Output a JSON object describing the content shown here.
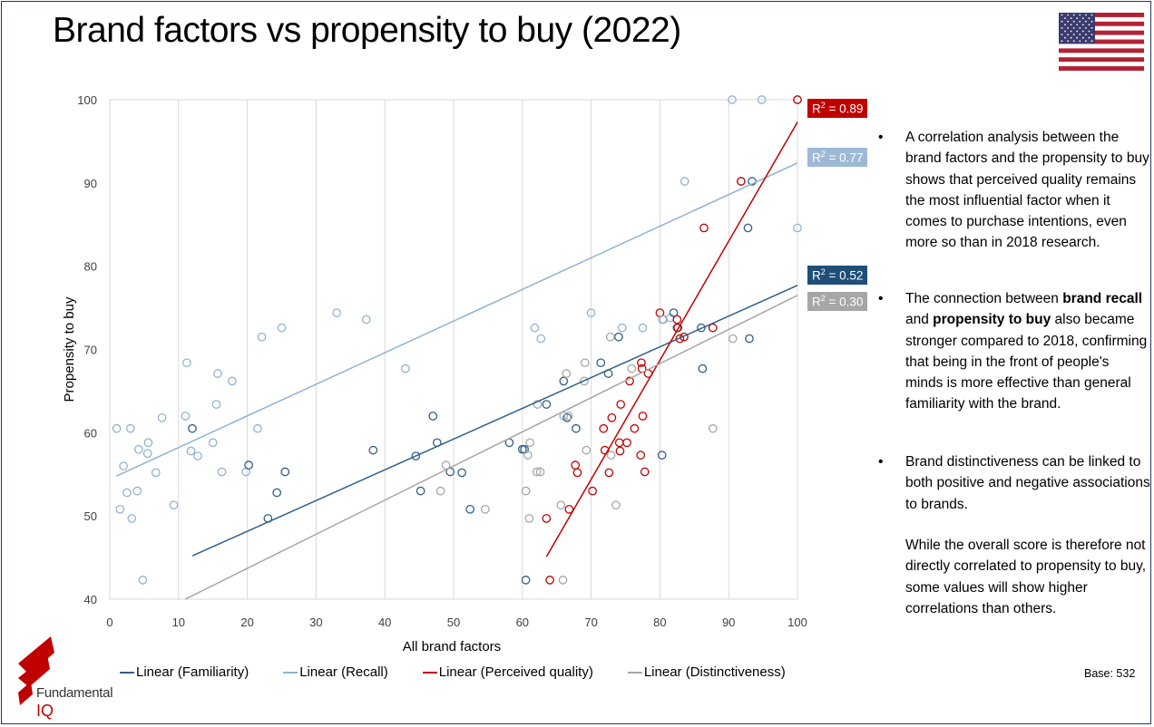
{
  "title": "Brand factors vs propensity to buy (2022)",
  "flag_icon": "us-flag-icon",
  "bullets": {
    "b1": "A correlation analysis between the brand factors and the propensity to buy shows that perceived quality remains the most influential factor when it comes to purchase intentions, even more so than in 2018 research.",
    "b2_pre": "The connection between ",
    "b2_bold1": "brand recall",
    "b2_mid": " and ",
    "b2_bold2": "propensity to buy",
    "b2_post": " also became stronger compared to 2018, confirming that being in the front of people's minds is more effective than general familiarity with the brand.",
    "b3": "Brand distinctiveness can be linked to both positive and negative associations to brands.",
    "b4": "While the overall score is therefore not directly correlated to propensity to buy, some values will show higher correlations than others."
  },
  "legend": [
    {
      "label": "Linear (Familiarity)",
      "color": "#2e5f8a"
    },
    {
      "label": "Linear (Recall)",
      "color": "#8fb3d4"
    },
    {
      "label": "Linear (Perceived quality)",
      "color": "#c00000"
    },
    {
      "label": "Linear (Distinctiveness)",
      "color": "#a6a6a6"
    }
  ],
  "base_label": "Base: 532",
  "logo": {
    "line1": "Fundamental",
    "line2": "IQ"
  },
  "r2_labels": [
    {
      "text": "0.89",
      "series": "Perceived quality",
      "bg": "#c00000"
    },
    {
      "text": "0.77",
      "series": "Recall",
      "bg": "#9db9d6"
    },
    {
      "text": "0.52",
      "series": "Familiarity",
      "bg": "#1f4e79"
    },
    {
      "text": "0.30",
      "series": "Distinctiveness",
      "bg": "#a6a6a6"
    }
  ],
  "r2_prefix": "R",
  "r2_sup": "2",
  "r2_eq": " = ",
  "chart_data": {
    "type": "scatter",
    "title": "",
    "xlabel": "All brand factors",
    "ylabel": "Propensity to buy",
    "xlim": [
      0,
      100
    ],
    "ylim": [
      40,
      100
    ],
    "xticks": [
      "0",
      "10",
      "20",
      "30",
      "40",
      "50",
      "60",
      "70",
      "80",
      "90",
      "100"
    ],
    "yticks": [
      "40",
      "50",
      "60",
      "70",
      "80",
      "90",
      "100"
    ],
    "grid": "vertical",
    "series": [
      {
        "name": "Recall",
        "color": "#8fb3d4",
        "points": [
          [
            1,
            60.5
          ],
          [
            1.5,
            50.8
          ],
          [
            2,
            56
          ],
          [
            2.5,
            52.8
          ],
          [
            3,
            60.5
          ],
          [
            3.2,
            49.7
          ],
          [
            4,
            53
          ],
          [
            4.2,
            58
          ],
          [
            4.8,
            42.3
          ],
          [
            5.5,
            57.5
          ],
          [
            5.6,
            58.8
          ],
          [
            6.7,
            55.2
          ],
          [
            7.6,
            61.8
          ],
          [
            9.3,
            51.3
          ],
          [
            11,
            62
          ],
          [
            11.2,
            68.4
          ],
          [
            11.8,
            57.8
          ],
          [
            12.8,
            57.2
          ],
          [
            15,
            58.8
          ],
          [
            15.5,
            63.4
          ],
          [
            15.7,
            67.1
          ],
          [
            16.3,
            55.3
          ],
          [
            17.8,
            66.2
          ],
          [
            19.8,
            55.3
          ],
          [
            21.5,
            60.5
          ],
          [
            22.1,
            71.5
          ],
          [
            25,
            72.6
          ],
          [
            33,
            74.4
          ],
          [
            37.3,
            73.6
          ],
          [
            43,
            67.7
          ],
          [
            61.8,
            72.6
          ],
          [
            62.7,
            71.3
          ],
          [
            66,
            62
          ],
          [
            70,
            74.4
          ],
          [
            74.5,
            72.6
          ],
          [
            77.5,
            72.6
          ],
          [
            80.5,
            73.6
          ],
          [
            81.5,
            73.8
          ],
          [
            83.6,
            90.2
          ],
          [
            90.5,
            100
          ],
          [
            94.8,
            100
          ],
          [
            100,
            100
          ],
          [
            91.8,
            90.2
          ],
          [
            100,
            84.6
          ]
        ]
      },
      {
        "name": "Familiarity",
        "color": "#2e5f8a",
        "points": [
          [
            12,
            60.5
          ],
          [
            20.2,
            56.1
          ],
          [
            23,
            49.7
          ],
          [
            24.3,
            52.8
          ],
          [
            25.5,
            55.3
          ],
          [
            38.3,
            57.9
          ],
          [
            44.5,
            57.2
          ],
          [
            45.2,
            53
          ],
          [
            47,
            62
          ],
          [
            47.6,
            58.8
          ],
          [
            49.5,
            55.3
          ],
          [
            51.2,
            55.2
          ],
          [
            52.4,
            50.8
          ],
          [
            58.1,
            58.8
          ],
          [
            60,
            58
          ],
          [
            60.3,
            58
          ],
          [
            60.5,
            42.3
          ],
          [
            63.5,
            63.4
          ],
          [
            66,
            66.2
          ],
          [
            66.5,
            61.8
          ],
          [
            67.8,
            60.5
          ],
          [
            71.4,
            68.4
          ],
          [
            72.5,
            67.1
          ],
          [
            74,
            71.5
          ],
          [
            80.3,
            57.3
          ],
          [
            82,
            74.4
          ],
          [
            82.5,
            72.6
          ],
          [
            86,
            72.6
          ],
          [
            86.2,
            67.7
          ],
          [
            92.8,
            84.6
          ],
          [
            93,
            71.3
          ],
          [
            93.4,
            90.2
          ]
        ]
      },
      {
        "name": "Perceived quality",
        "color": "#c00000",
        "points": [
          [
            63.5,
            49.7
          ],
          [
            64,
            42.3
          ],
          [
            66.8,
            50.8
          ],
          [
            67.7,
            56.1
          ],
          [
            68,
            55.2
          ],
          [
            70.2,
            53
          ],
          [
            71.8,
            60.5
          ],
          [
            72,
            57.9
          ],
          [
            72.6,
            55.2
          ],
          [
            73,
            61.8
          ],
          [
            74.1,
            58.8
          ],
          [
            74.2,
            57.8
          ],
          [
            74.3,
            63.4
          ],
          [
            75.2,
            58.8
          ],
          [
            75.6,
            66.2
          ],
          [
            76.3,
            60.5
          ],
          [
            77.2,
            57.3
          ],
          [
            77.3,
            68.4
          ],
          [
            77.4,
            67.7
          ],
          [
            77.5,
            62
          ],
          [
            77.8,
            55.3
          ],
          [
            78.3,
            67.1
          ],
          [
            80,
            74.4
          ],
          [
            82.5,
            73.6
          ],
          [
            82.6,
            72.6
          ],
          [
            82.9,
            71.3
          ],
          [
            83.5,
            71.5
          ],
          [
            86.4,
            84.6
          ],
          [
            87.7,
            72.6
          ],
          [
            91.8,
            90.2
          ],
          [
            100,
            100
          ]
        ]
      },
      {
        "name": "Distinctiveness",
        "color": "#a6a6a6",
        "points": [
          [
            48.1,
            53
          ],
          [
            48.9,
            56.1
          ],
          [
            54.6,
            50.8
          ],
          [
            60.5,
            53
          ],
          [
            60.8,
            57.3
          ],
          [
            61.1,
            58.8
          ],
          [
            61,
            49.7
          ],
          [
            62.1,
            55.3
          ],
          [
            62.6,
            55.3
          ],
          [
            62.2,
            63.4
          ],
          [
            65.6,
            51.3
          ],
          [
            65.9,
            42.3
          ],
          [
            66.4,
            67.1
          ],
          [
            66.7,
            62
          ],
          [
            69,
            66.2
          ],
          [
            69.1,
            68.4
          ],
          [
            69.3,
            57.9
          ],
          [
            72.8,
            71.5
          ],
          [
            72.9,
            57.3
          ],
          [
            73.6,
            51.3
          ],
          [
            75.9,
            67.7
          ],
          [
            80.4,
            73.6
          ],
          [
            87.7,
            60.5
          ],
          [
            90.6,
            71.3
          ]
        ]
      }
    ],
    "trendlines": [
      {
        "series": "Familiarity",
        "color": "#2e5f8a",
        "x": [
          12,
          100
        ],
        "y": [
          45.2,
          77.7
        ]
      },
      {
        "series": "Recall",
        "color": "#8fb3d4",
        "x": [
          1,
          100
        ],
        "y": [
          54.8,
          92.4
        ]
      },
      {
        "series": "Perceived quality",
        "color": "#c00000",
        "x": [
          63.5,
          100
        ],
        "y": [
          45.1,
          97.3
        ]
      },
      {
        "series": "Distinctiveness",
        "color": "#a6a6a6",
        "x": [
          0,
          100
        ],
        "y": [
          35.5,
          76.5
        ]
      }
    ]
  }
}
